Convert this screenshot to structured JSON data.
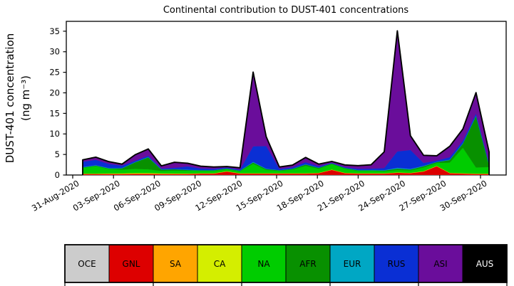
{
  "figure": {
    "background": "#ffffff"
  },
  "chart_data": {
    "type": "area",
    "stacked": true,
    "title": "Continental contribution to DUST-401 concentrations",
    "ylabel": "DUST-401 concentration",
    "ylabel_units": "(ng m⁻³)",
    "ylim": [
      0,
      37.4
    ],
    "yticks": [
      0,
      5,
      10,
      15,
      20,
      25,
      30,
      35
    ],
    "grid": false,
    "legend_position": "bottom",
    "xtick_labels": [
      "31-Aug-2020",
      "03-Sep-2020",
      "06-Sep-2020",
      "09-Sep-2020",
      "12-Sep-2020",
      "15-Sep-2020",
      "18-Sep-2020",
      "21-Sep-2020",
      "24-Sep-2020",
      "27-Sep-2020",
      "30-Sep-2020"
    ],
    "x": [
      "31-Aug-2020",
      "01-Sep-2020",
      "02-Sep-2020",
      "03-Sep-2020",
      "04-Sep-2020",
      "05-Sep-2020",
      "06-Sep-2020",
      "07-Sep-2020",
      "08-Sep-2020",
      "09-Sep-2020",
      "10-Sep-2020",
      "11-Sep-2020",
      "12-Sep-2020",
      "13-Sep-2020",
      "14-Sep-2020",
      "15-Sep-2020",
      "16-Sep-2020",
      "17-Sep-2020",
      "18-Sep-2020",
      "19-Sep-2020",
      "20-Sep-2020",
      "21-Sep-2020",
      "22-Sep-2020",
      "23-Sep-2020",
      "24-Sep-2020",
      "25-Sep-2020",
      "26-Sep-2020",
      "27-Sep-2020",
      "28-Sep-2020",
      "29-Sep-2020",
      "30-Sep-2020",
      "01-Oct-2020"
    ],
    "series": [
      {
        "name": "OCE",
        "color": "#cccccc",
        "label_color": "#000000",
        "values": [
          0.05,
          0.05,
          0.05,
          0.05,
          0.05,
          0.05,
          0.05,
          0.05,
          0.05,
          0.05,
          0.05,
          0.05,
          0.05,
          0.05,
          0.05,
          0.05,
          0.05,
          0.05,
          0.05,
          0.05,
          0.05,
          0.05,
          0.05,
          0.05,
          0.05,
          0.05,
          0.05,
          0.05,
          0.05,
          0.05,
          0.05,
          0.05
        ]
      },
      {
        "name": "GNL",
        "color": "#dd0000",
        "label_color": "#000000",
        "values": [
          0.2,
          0.2,
          0.2,
          0.2,
          0.25,
          0.25,
          0.2,
          0.2,
          0.2,
          0.3,
          0.3,
          0.8,
          0.3,
          0.3,
          0.3,
          0.3,
          0.3,
          0.3,
          0.4,
          1.2,
          0.4,
          0.3,
          0.3,
          0.3,
          0.5,
          0.4,
          0.8,
          2.1,
          0.4,
          0.3,
          0.2,
          0.2
        ]
      },
      {
        "name": "SA",
        "color": "#ffa500",
        "label_color": "#000000",
        "values": [
          0.05,
          0.05,
          0.05,
          0.05,
          0.05,
          0.05,
          0.05,
          0.05,
          0.05,
          0.05,
          0.05,
          0.05,
          0.05,
          0.05,
          0.05,
          0.05,
          0.05,
          0.05,
          0.05,
          0.05,
          0.05,
          0.05,
          0.05,
          0.05,
          0.05,
          0.05,
          0.05,
          0.05,
          0.05,
          0.05,
          0.05,
          0.05
        ]
      },
      {
        "name": "CA",
        "color": "#d4ee00",
        "label_color": "#000000",
        "values": [
          0.05,
          0.05,
          0.1,
          0.12,
          0.15,
          0.15,
          0.12,
          0.1,
          0.08,
          0.05,
          0.05,
          0.05,
          0.05,
          0.05,
          0.05,
          0.05,
          0.05,
          0.05,
          0.05,
          0.05,
          0.05,
          0.05,
          0.05,
          0.05,
          0.05,
          0.05,
          0.05,
          0.05,
          0.05,
          0.05,
          0.05,
          0.05
        ]
      },
      {
        "name": "NA",
        "color": "#00cc00",
        "label_color": "#000000",
        "values": [
          1.4,
          1.8,
          1.1,
          0.9,
          1.0,
          0.9,
          0.6,
          0.7,
          0.7,
          0.6,
          0.6,
          0.5,
          0.5,
          2.3,
          0.8,
          0.6,
          0.9,
          1.8,
          1.0,
          1.3,
          1.0,
          0.6,
          0.6,
          0.5,
          0.6,
          0.6,
          0.9,
          0.7,
          2.5,
          6.2,
          1.5,
          1.6
        ]
      },
      {
        "name": "AFR",
        "color": "#089000",
        "label_color": "#000000",
        "values": [
          0.1,
          0.15,
          0.1,
          0.3,
          1.6,
          2.9,
          0.3,
          0.3,
          0.15,
          0.1,
          0.1,
          0.1,
          0.1,
          0.3,
          0.2,
          0.1,
          0.15,
          0.3,
          0.2,
          0.15,
          0.15,
          0.1,
          0.1,
          0.15,
          0.3,
          0.2,
          0.3,
          0.2,
          0.6,
          1.0,
          12.5,
          0.5
        ]
      },
      {
        "name": "EUR",
        "color": "#00a7c4",
        "label_color": "#000000",
        "values": [
          0.1,
          0.1,
          0.1,
          0.08,
          0.08,
          0.1,
          0.06,
          0.06,
          0.08,
          0.06,
          0.06,
          0.06,
          0.06,
          0.15,
          0.1,
          0.06,
          0.06,
          0.08,
          0.06,
          0.06,
          0.06,
          0.08,
          0.1,
          0.1,
          0.2,
          0.15,
          0.1,
          0.08,
          0.1,
          0.1,
          0.15,
          0.1
        ]
      },
      {
        "name": "RUS",
        "color": "#0a2fd4",
        "label_color": "#000000",
        "values": [
          1.3,
          1.3,
          1.0,
          0.6,
          0.3,
          0.3,
          0.2,
          0.3,
          0.8,
          0.4,
          0.3,
          0.2,
          0.2,
          3.8,
          5.5,
          0.3,
          0.3,
          0.5,
          0.3,
          0.1,
          0.15,
          0.3,
          0.3,
          0.5,
          4.0,
          4.6,
          0.7,
          0.3,
          0.6,
          0.6,
          0.5,
          0.4
        ]
      },
      {
        "name": "ASI",
        "color": "#6a0d9b",
        "label_color": "#000000",
        "values": [
          0.4,
          0.6,
          0.5,
          0.3,
          1.4,
          1.6,
          0.6,
          1.3,
          0.7,
          0.5,
          0.4,
          0.2,
          0.4,
          18.0,
          2.2,
          0.4,
          0.5,
          1.1,
          0.5,
          0.3,
          0.5,
          0.7,
          0.9,
          3.9,
          29.3,
          3.4,
          1.8,
          1.1,
          2.6,
          2.8,
          5.0,
          2.6
        ]
      },
      {
        "name": "AUS",
        "color": "#000000",
        "label_color": "#ffffff",
        "values": [
          0.05,
          0.05,
          0.05,
          0.05,
          0.05,
          0.05,
          0.05,
          0.05,
          0.05,
          0.05,
          0.05,
          0.05,
          0.05,
          0.05,
          0.05,
          0.05,
          0.05,
          0.05,
          0.05,
          0.05,
          0.05,
          0.05,
          0.05,
          0.05,
          0.05,
          0.05,
          0.05,
          0.05,
          0.05,
          0.05,
          0.05,
          0.05
        ]
      }
    ]
  }
}
